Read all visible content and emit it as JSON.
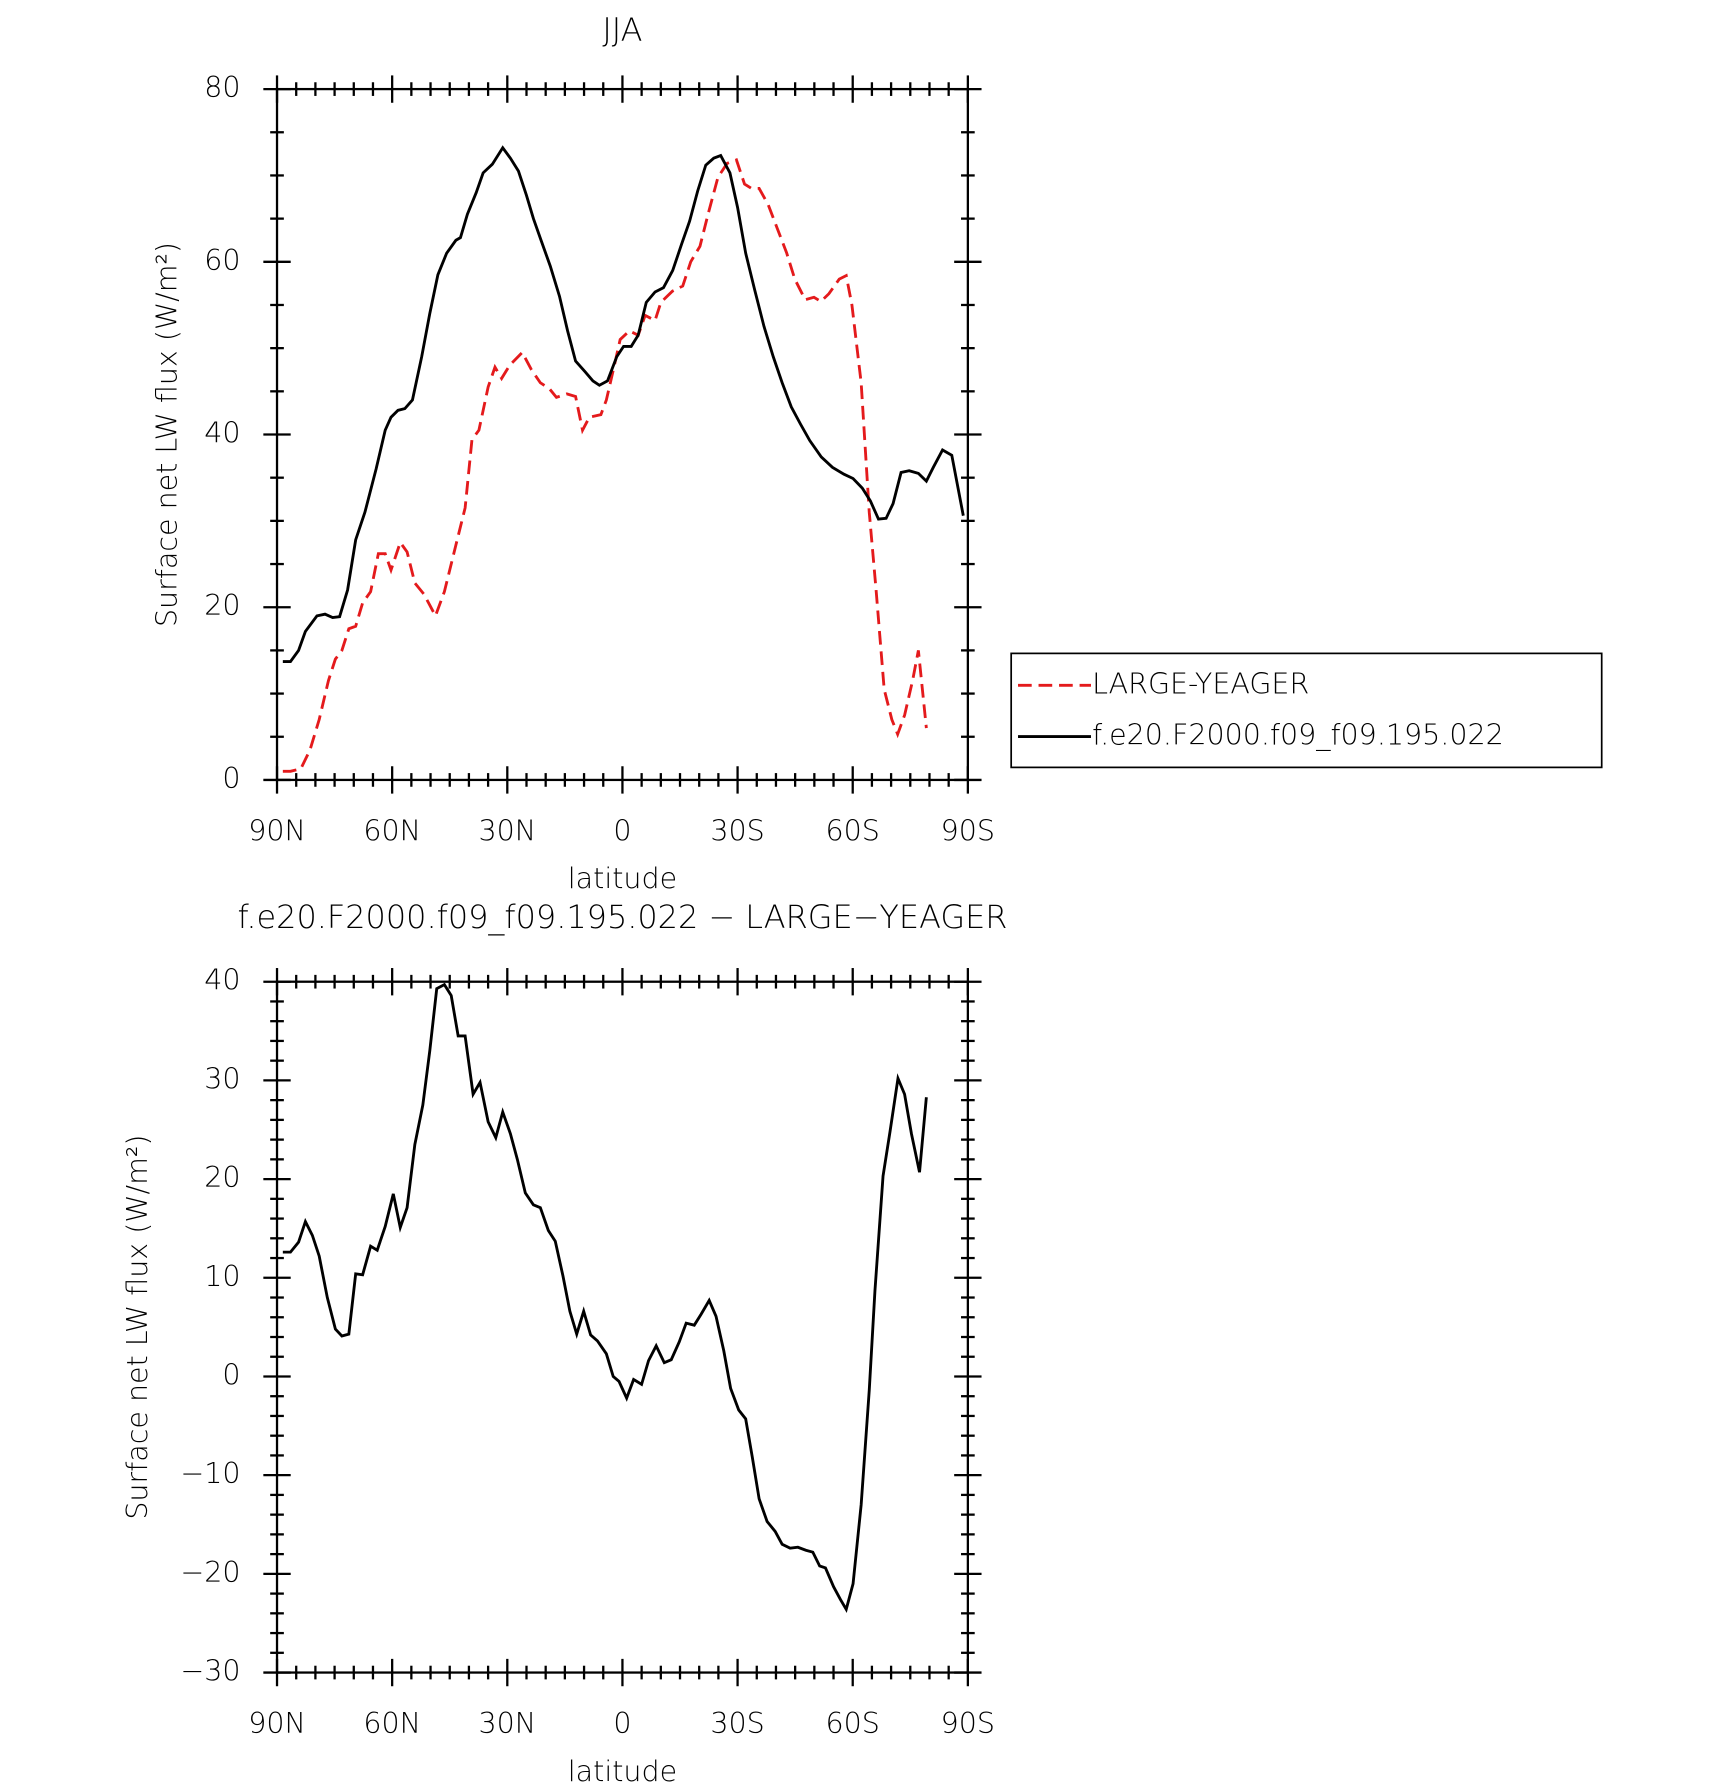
{
  "chart_data": [
    {
      "type": "line",
      "title": "JJA",
      "xlabel": "latitude",
      "ylabel": "Surface net LW flux (W/m²)",
      "xlim": [
        90,
        -90
      ],
      "xticks": [
        {
          "value": 90,
          "label": "90N"
        },
        {
          "value": 60,
          "label": "60N"
        },
        {
          "value": 30,
          "label": "30N"
        },
        0,
        {
          "value": -30,
          "label": "30S"
        },
        {
          "value": -60,
          "label": "60S"
        },
        {
          "value": -90,
          "label": "90S"
        }
      ],
      "ylim": [
        0,
        80
      ],
      "yticks": [
        0,
        20,
        40,
        60,
        80
      ],
      "legend": "right",
      "series": [
        {
          "name": "LARGE-YEAGER",
          "color": "#e41a1c",
          "dash": true,
          "x": [
            88.5,
            86.5,
            83.8,
            81.4,
            79,
            76.6,
            74.8,
            73.1,
            71.3,
            69.5,
            67.7,
            65.6,
            63.6,
            61.8,
            60.3,
            57.9,
            56.1,
            54.1,
            51.7,
            48.7,
            46.4,
            43.4,
            41,
            39.2,
            37.4,
            35,
            33.2,
            31.5,
            29.4,
            26.1,
            23.7,
            21.4,
            19,
            17.2,
            14.5,
            12.2,
            10.4,
            8.6,
            5.6,
            4.2,
            2.1,
            0.6,
            -1.8,
            -4.1,
            -5.9,
            -8.5,
            -10,
            -13,
            -15.7,
            -17.8,
            -20.2,
            -22.3,
            -24.9,
            -27.3,
            -29.7,
            -31.8,
            -33.6,
            -35.6,
            -38,
            -40.4,
            -42.8,
            -44.9,
            -47.6,
            -49.9,
            -51.7,
            -53.8,
            -56.5,
            -58.3,
            -59.8,
            -62.2,
            -64.3,
            -66.1,
            -68.2,
            -70.2,
            -71.7,
            -73.5,
            -75.6,
            -77.1,
            -79.2
          ],
          "values": [
            1,
            1,
            1.3,
            3.5,
            7,
            11.5,
            14,
            15,
            17.5,
            17.8,
            20.5,
            21.8,
            26.2,
            26.2,
            24.3,
            27.5,
            26.4,
            22.8,
            21.5,
            19,
            21.8,
            27.2,
            31.5,
            39.4,
            40.5,
            45.5,
            47.8,
            46.5,
            48,
            49.5,
            47.5,
            46,
            45.3,
            44.3,
            44.7,
            44.4,
            40.5,
            42,
            42.3,
            44,
            48,
            51,
            52,
            51.5,
            53.8,
            53.2,
            55.3,
            56.6,
            57.2,
            60,
            61.8,
            65.5,
            69.8,
            71.4,
            71.8,
            69,
            68.5,
            68.5,
            66.6,
            63.8,
            61,
            58,
            55.6,
            55.9,
            55.4,
            56.3,
            58,
            58.4,
            55,
            46,
            31,
            22,
            10.5,
            7,
            5.3,
            7.5,
            11.5,
            15,
            6
          ]
        },
        {
          "name": "f.e20.F2000.f09_f09.195.022",
          "color": "#000000",
          "dash": false,
          "x": [
            88.5,
            86.5,
            84.4,
            82.6,
            79.6,
            77.5,
            75.5,
            73.7,
            71.6,
            69.5,
            67.1,
            64.2,
            61.8,
            60.3,
            58.5,
            56.7,
            54.7,
            52.3,
            50.2,
            48.1,
            45.8,
            43.4,
            42.2,
            40.4,
            38.1,
            36.3,
            33.9,
            31.2,
            29.2,
            27.1,
            25,
            23.2,
            21.2,
            18.8,
            16.4,
            14.3,
            12.2,
            9.8,
            7.7,
            6,
            3.9,
            1.5,
            -0.3,
            -2.3,
            -4.1,
            -6.2,
            -8.5,
            -10.7,
            -13.1,
            -15.4,
            -17.5,
            -19.6,
            -21.7,
            -23.8,
            -25.6,
            -28,
            -30,
            -32.1,
            -34.5,
            -36.9,
            -39.3,
            -41.6,
            -44,
            -46.4,
            -48.8,
            -51.8,
            -54.7,
            -57.7,
            -60.1,
            -62.5,
            -64.6,
            -66.7,
            -68.7,
            -70.5,
            -72.6,
            -74.7,
            -77.1,
            -79.2,
            -81,
            -83.4,
            -85.8,
            -88.8
          ],
          "values": [
            13.7,
            13.7,
            15,
            17.2,
            19,
            19.2,
            18.8,
            18.9,
            22,
            27.8,
            31,
            36,
            40.5,
            42,
            42.8,
            43,
            44,
            49,
            54,
            58.5,
            61,
            62.5,
            62.8,
            65.5,
            68,
            70.3,
            71.3,
            73.2,
            72,
            70.5,
            67.7,
            65,
            62.5,
            59.5,
            56,
            52,
            48.5,
            47.3,
            46.2,
            45.7,
            46.2,
            49,
            50.2,
            50.2,
            51.5,
            55.3,
            56.5,
            57,
            59,
            62,
            64.7,
            68.2,
            71.2,
            72,
            72.3,
            70.3,
            66.3,
            61,
            56.7,
            52.5,
            49,
            46,
            43.2,
            41.2,
            39.3,
            37.4,
            36.2,
            35.4,
            34.9,
            33.8,
            32.3,
            30.2,
            30.3,
            32,
            35.6,
            35.8,
            35.5,
            34.6,
            36.2,
            38.2,
            37.6,
            30.6
          ]
        }
      ]
    },
    {
      "type": "line",
      "title": "f.e20.F2000.f09_f09.195.022 − LARGE−YEAGER",
      "xlabel": "latitude",
      "ylabel": "Surface net LW flux (W/m²)",
      "xlim": [
        90,
        -90
      ],
      "xticks": [
        {
          "value": 90,
          "label": "90N"
        },
        {
          "value": 60,
          "label": "60N"
        },
        {
          "value": 30,
          "label": "30N"
        },
        0,
        {
          "value": -30,
          "label": "30S"
        },
        {
          "value": -60,
          "label": "60S"
        },
        {
          "value": -90,
          "label": "90S"
        }
      ],
      "ylim": [
        -30,
        40
      ],
      "yticks": [
        {
          "value": -30,
          "label": "−30"
        },
        {
          "value": -20,
          "label": "−20"
        },
        {
          "value": -10,
          "label": "−10"
        },
        0,
        10,
        20,
        30,
        40
      ],
      "series": [
        {
          "color": "#000000",
          "dash": false,
          "x": [
            88.5,
            86.5,
            84.4,
            82.6,
            80.8,
            79,
            76.9,
            74.8,
            73.1,
            71.3,
            69.5,
            67.7,
            65.6,
            63.9,
            61.8,
            59.7,
            57.9,
            56.1,
            54.1,
            52,
            50.2,
            48.4,
            46.4,
            44.6,
            42.8,
            41,
            38.9,
            37.1,
            35,
            33,
            31.2,
            29.2,
            27.4,
            25.3,
            23.2,
            21.4,
            19.3,
            17.5,
            15.5,
            13.7,
            11.9,
            10.1,
            8.3,
            6.5,
            4.2,
            2.4,
            0.9,
            -1.1,
            -2.9,
            -5,
            -6.8,
            -8.8,
            -10.9,
            -12.7,
            -14.8,
            -16.6,
            -18.7,
            -20.5,
            -22.6,
            -24.4,
            -26.4,
            -28.2,
            -30.3,
            -32.1,
            -33.8,
            -35.6,
            -37.7,
            -39.8,
            -41.6,
            -43.7,
            -45.7,
            -47.8,
            -49.6,
            -51.4,
            -52.9,
            -55,
            -56.8,
            -58.3,
            -60.1,
            -62.2,
            -64.3,
            -65.8,
            -67.9,
            -69.7,
            -71.8,
            -73.5,
            -75.3,
            -77.4,
            -79.2
          ],
          "values": [
            12.6,
            12.6,
            13.6,
            15.7,
            14.3,
            12.2,
            8,
            4.8,
            4.1,
            4.3,
            10.4,
            10.3,
            13.2,
            12.8,
            15.2,
            18.5,
            15.1,
            17.1,
            23.5,
            27.5,
            33,
            39.3,
            39.7,
            38.6,
            34.5,
            34.5,
            28.6,
            29.8,
            25.8,
            24.2,
            26.8,
            24.6,
            22,
            18.6,
            17.4,
            17.1,
            14.8,
            13.7,
            10.2,
            6.6,
            4.3,
            6.6,
            4.2,
            3.6,
            2.3,
            0,
            -0.5,
            -2.2,
            -0.3,
            -0.8,
            1.6,
            3.1,
            1.4,
            1.7,
            3.5,
            5.4,
            5.2,
            6.3,
            7.7,
            6.1,
            2.6,
            -1.2,
            -3.4,
            -4.3,
            -8.1,
            -12.4,
            -14.7,
            -15.7,
            -17,
            -17.4,
            -17.3,
            -17.6,
            -17.8,
            -19.2,
            -19.4,
            -21.3,
            -22.6,
            -23.6,
            -21,
            -13,
            -1.4,
            8.7,
            20.3,
            24.8,
            30.2,
            28.6,
            24.6,
            20.7,
            28.3
          ]
        }
      ]
    }
  ]
}
